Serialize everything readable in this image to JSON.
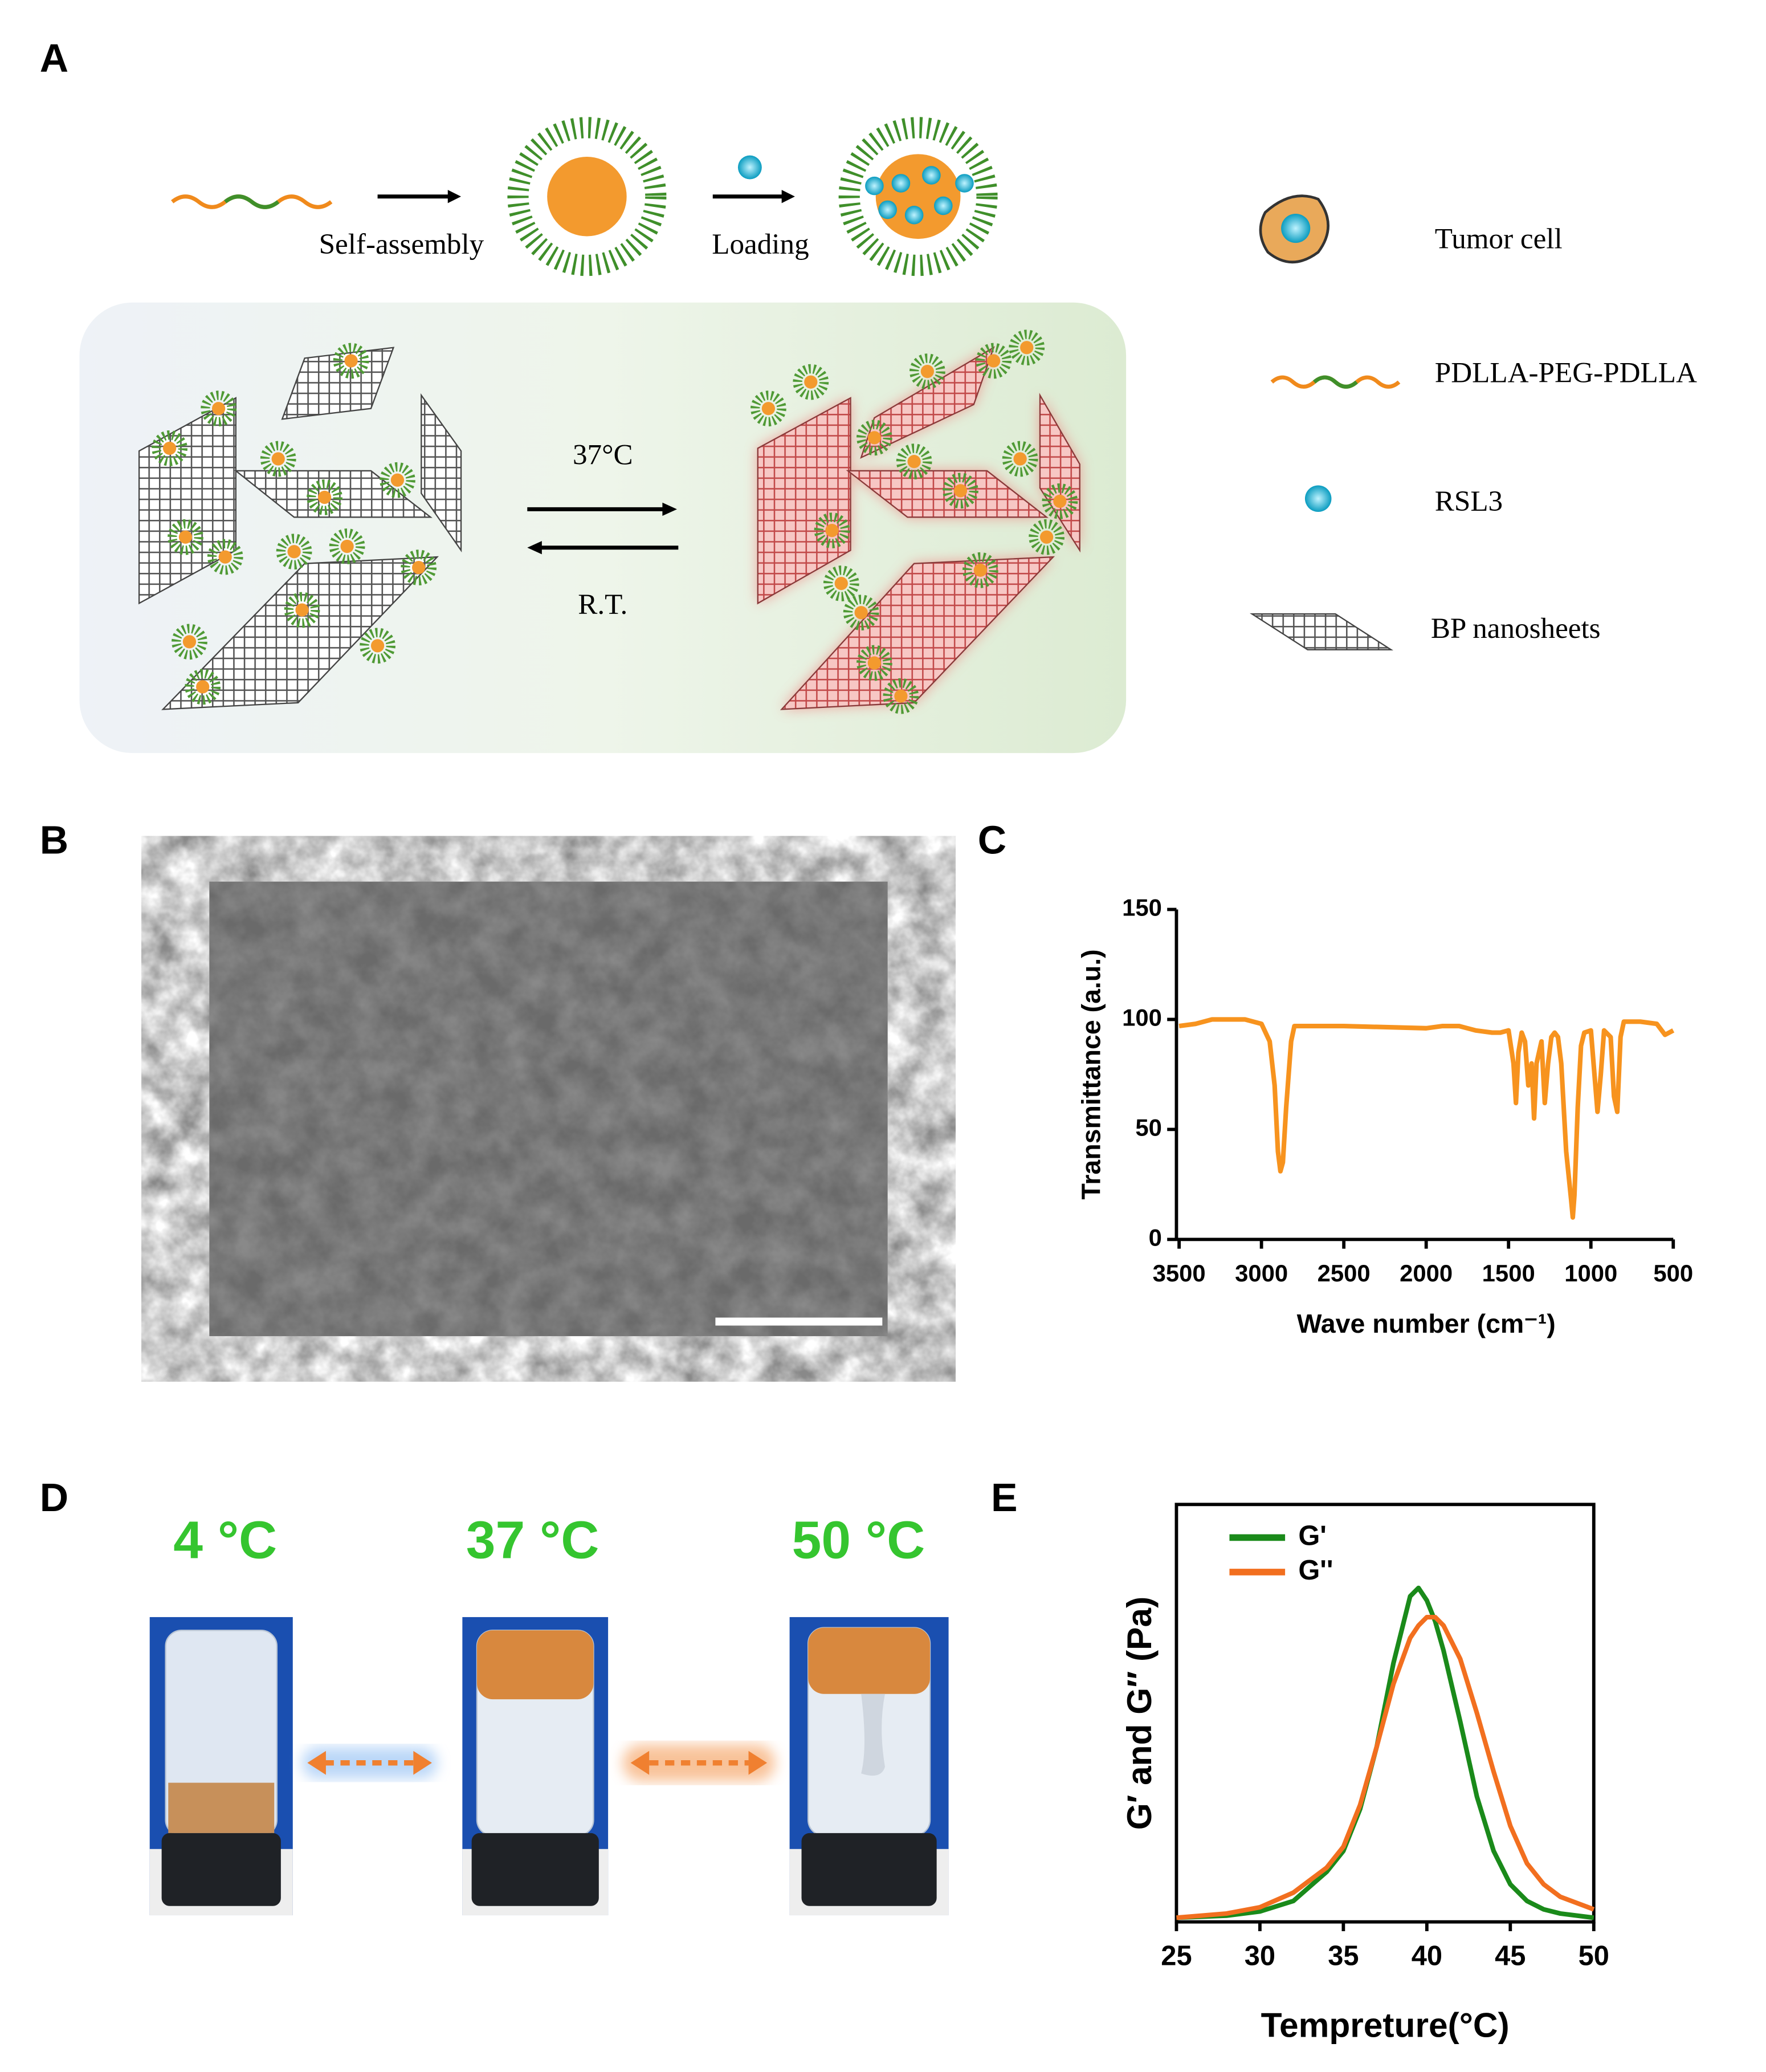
{
  "panels": [
    "A",
    "B",
    "C",
    "D",
    "E"
  ],
  "scheme": {
    "steps": [
      "Self-assembly",
      "Loading"
    ],
    "conditions": [
      "37°C",
      "R.T."
    ],
    "legend": [
      "Tumor cell",
      "PDLLA-PEG-PDLLA",
      "RSL3",
      "BP nanosheets"
    ]
  },
  "photos": {
    "temperatures": [
      "4 °C",
      "37 °C",
      "50 °C"
    ]
  },
  "chart_data": [
    {
      "type": "line",
      "xlabel": "Wave number (cm⁻¹)",
      "ylabel": "Transmittance (a.u.)",
      "x": [
        3500,
        3400,
        3300,
        3100,
        3000,
        2950,
        2920,
        2900,
        2885,
        2870,
        2850,
        2820,
        2800,
        2500,
        2000,
        1900,
        1800,
        1750,
        1700,
        1600,
        1550,
        1500,
        1470,
        1455,
        1440,
        1420,
        1400,
        1380,
        1360,
        1345,
        1330,
        1300,
        1280,
        1260,
        1240,
        1220,
        1200,
        1180,
        1150,
        1120,
        1110,
        1100,
        1080,
        1060,
        1040,
        1000,
        960,
        940,
        920,
        880,
        860,
        840,
        820,
        800,
        700,
        600,
        550,
        500
      ],
      "series": [
        {
          "color": "#f7931e",
          "values": [
            97,
            98,
            100,
            100,
            98,
            90,
            70,
            40,
            31,
            35,
            60,
            90,
            97,
            97,
            96,
            97,
            97,
            96,
            95,
            94,
            94,
            95,
            80,
            62,
            85,
            94,
            90,
            70,
            80,
            55,
            80,
            90,
            62,
            80,
            92,
            94,
            92,
            80,
            40,
            18,
            10,
            20,
            60,
            88,
            94,
            95,
            58,
            75,
            95,
            92,
            65,
            58,
            92,
            99,
            99,
            98,
            93,
            95
          ]
        }
      ],
      "xlim": [
        3500,
        500
      ],
      "xticks": [
        3500,
        3000,
        2500,
        2000,
        1500,
        1000,
        500
      ],
      "ylim": [
        0,
        150
      ],
      "yticks": [
        0,
        50,
        100,
        150
      ]
    },
    {
      "type": "line",
      "xlabel": "Tempreture(°C)",
      "ylabel": "G′ and G″ (Pa)",
      "legend": "upper left",
      "x": [
        25,
        28,
        30,
        32,
        34,
        35,
        36,
        37,
        38,
        39,
        39.5,
        40,
        40.5,
        41,
        42,
        43,
        44,
        45,
        46,
        47,
        48,
        50
      ],
      "series": [
        {
          "name": "G'",
          "color": "#1a8a1a",
          "values": [
            1,
            1.5,
            2.5,
            5,
            12,
            17,
            27,
            42,
            62,
            78,
            80,
            77,
            72,
            65,
            48,
            30,
            17,
            9,
            5,
            3,
            2,
            1
          ]
        },
        {
          "name": "G''",
          "color": "#f26f1f",
          "values": [
            1,
            2,
            3.5,
            7,
            13,
            18,
            28,
            42,
            57,
            68,
            71,
            73,
            73,
            71,
            63,
            50,
            36,
            23,
            14,
            9,
            6,
            3
          ]
        }
      ],
      "xlim": [
        25,
        50
      ],
      "xticks": [
        25,
        30,
        35,
        40,
        45,
        50
      ],
      "ylim": [
        0,
        100
      ]
    }
  ]
}
